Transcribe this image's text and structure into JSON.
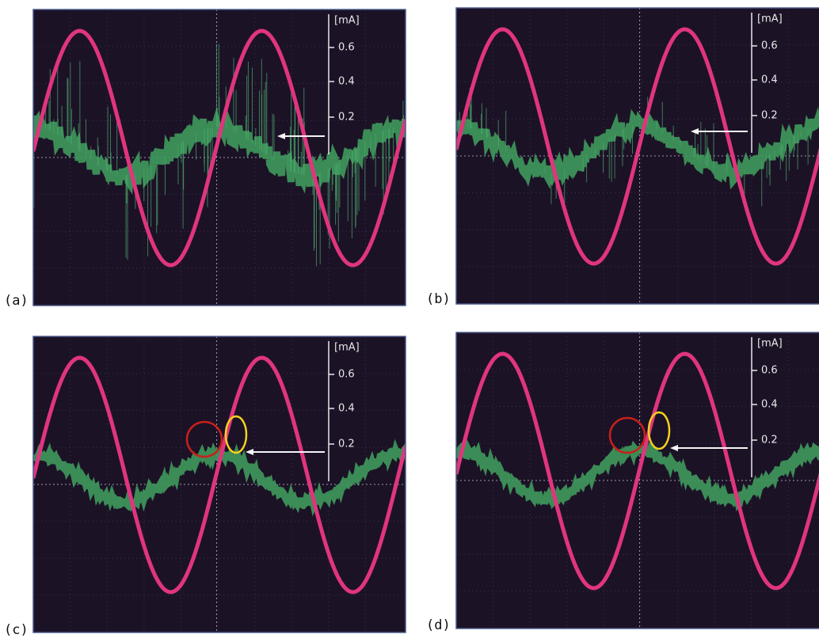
{
  "panels": [
    {
      "label": "(a)",
      "unit": "[mA]",
      "scale": [
        "0.6",
        "0.4",
        "0.2"
      ]
    },
    {
      "label": "(b)",
      "unit": "[mA]",
      "scale": [
        "0.6",
        "0.4",
        "0.2"
      ]
    },
    {
      "label": "(c)",
      "unit": "[mA]",
      "scale": [
        "0.6",
        "0.4",
        "0.2"
      ]
    },
    {
      "label": "(d)",
      "unit": "[mA]",
      "scale": [
        "0.6",
        "0.4",
        "0.2"
      ]
    }
  ]
}
